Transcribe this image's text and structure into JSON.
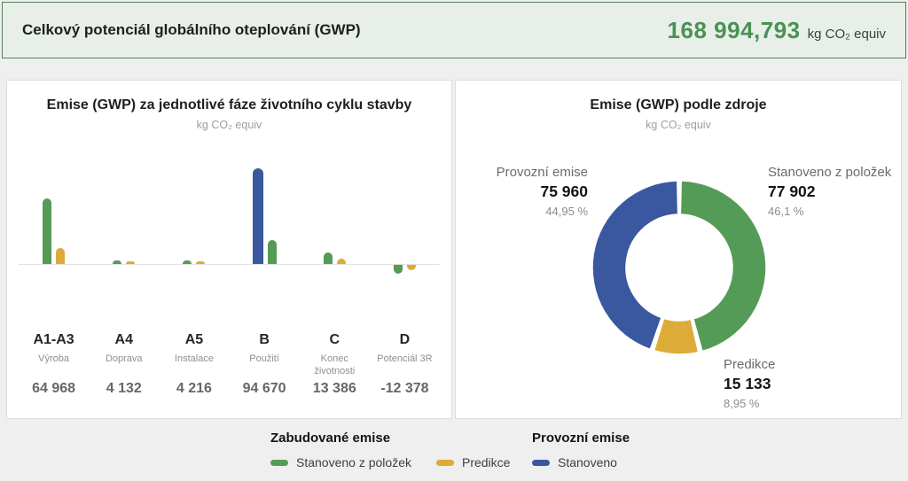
{
  "header": {
    "title": "Celkový potenciál globálního oteplování (GWP)",
    "total_value": "168 994,793",
    "total_unit": "kg CO₂ equiv"
  },
  "chart_data": [
    {
      "type": "bar",
      "title": "Emise (GWP) za jednotlivé fáze životního cyklu stavby",
      "subtitle": "kg CO₂ equiv",
      "categories": [
        "A1-A3",
        "A4",
        "A5",
        "B",
        "C",
        "D"
      ],
      "category_sublabels": [
        "Výroba",
        "Doprava",
        "Instalace",
        "Použití",
        "Konec životnosti",
        "Potenciál 3R"
      ],
      "category_totals": [
        64968,
        4132,
        4216,
        94670,
        13386,
        -12378
      ],
      "category_total_labels": [
        "64 968",
        "4 132",
        "4 216",
        "94 670",
        "13 386",
        "-12 378"
      ],
      "series": [
        {
          "name": "Stanoveno z položek",
          "color": "#549b57",
          "values": [
            52000,
            2750,
            2800,
            18710,
            9400,
            -7760
          ]
        },
        {
          "name": "Predikce",
          "color": "#dcab38",
          "values": [
            12968,
            1382,
            1416,
            0,
            3986,
            -4618
          ]
        },
        {
          "name": "Stanoveno",
          "color": "#3a58a0",
          "values": [
            0,
            0,
            0,
            75960,
            0,
            0
          ]
        }
      ],
      "note": "per-series split estimated from bar heights; category totals are the labeled values",
      "grid": false,
      "baseline": 0
    },
    {
      "type": "pie",
      "donut": true,
      "title": "Emise (GWP) podle zdroje",
      "subtitle": "kg CO₂ equiv",
      "start_angle_deg": 0,
      "direction": "clockwise",
      "slices": [
        {
          "label": "Stanoveno z položek",
          "value": 77902,
          "value_label": "77 902",
          "pct": 46.1,
          "pct_label": "46,1 %",
          "color": "#549b57"
        },
        {
          "label": "Predikce",
          "value": 15133,
          "value_label": "15 133",
          "pct": 8.95,
          "pct_label": "8,95 %",
          "color": "#dcab38"
        },
        {
          "label": "Provozní emise",
          "value": 75960,
          "value_label": "75 960",
          "pct": 44.95,
          "pct_label": "44,95 %",
          "color": "#3a58a0"
        }
      ]
    }
  ],
  "legend": {
    "groups": [
      {
        "title": "Zabudované emise",
        "items": [
          {
            "label": "Stanoveno z položek",
            "color": "#549b57"
          },
          {
            "label": "Predikce",
            "color": "#dcab38"
          }
        ]
      },
      {
        "title": "Provozní emise",
        "items": [
          {
            "label": "Stanoveno",
            "color": "#3a58a0"
          }
        ]
      }
    ]
  },
  "colors": {
    "green": "#549b57",
    "yellow": "#dcab38",
    "blue": "#3a58a0",
    "header_bg": "#e8efe9",
    "header_border": "#55815d",
    "header_value": "#4b9154",
    "page_bg": "#efefef",
    "panel_border": "#dcdcdc"
  }
}
